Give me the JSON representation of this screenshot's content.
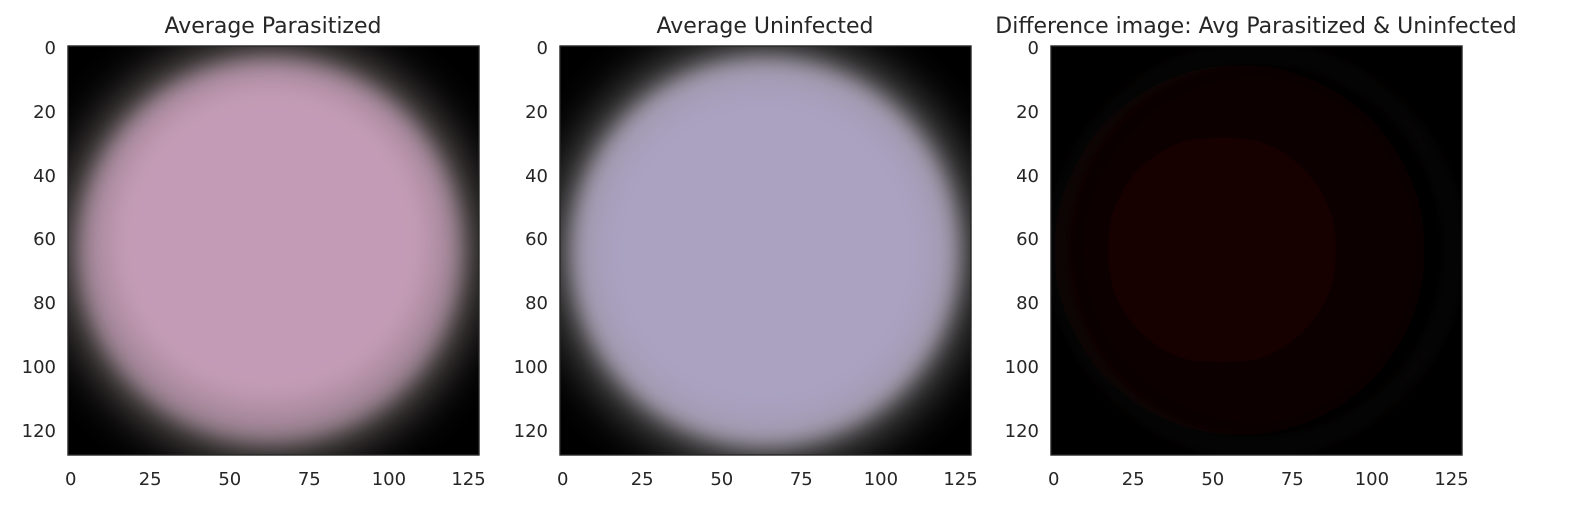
{
  "panels": [
    {
      "title": "Average Parasitized",
      "xticks": [
        "0",
        "25",
        "50",
        "75",
        "100",
        "125"
      ],
      "yticks": [
        "0",
        "20",
        "40",
        "60",
        "80",
        "100",
        "120"
      ],
      "center_color": "#c49bb6",
      "edge_color": "#8a7682"
    },
    {
      "title": "Average Uninfected",
      "xticks": [
        "0",
        "25",
        "50",
        "75",
        "100",
        "125"
      ],
      "yticks": [
        "0",
        "20",
        "40",
        "60",
        "80",
        "100",
        "120"
      ],
      "center_color": "#aba2c2",
      "edge_color": "#9b95a3"
    },
    {
      "title": "Difference image: Avg Parasitized & Uninfected",
      "xticks": [
        "0",
        "25",
        "50",
        "75",
        "100",
        "125"
      ],
      "yticks": [
        "0",
        "20",
        "40",
        "60",
        "80",
        "100",
        "120"
      ],
      "center_color": "#1a0505",
      "edge_color": "#0b0303"
    }
  ]
}
